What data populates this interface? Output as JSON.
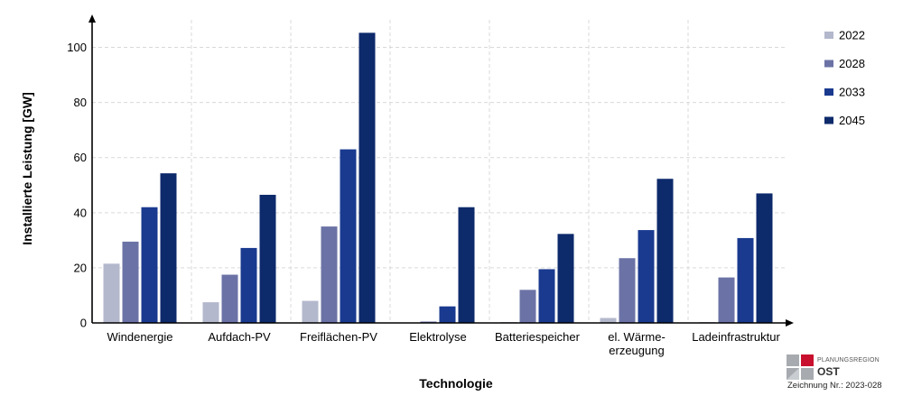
{
  "chart_data": {
    "type": "bar",
    "title": "",
    "xlabel": "Technologie",
    "ylabel": "Installierte Leistung [GW]",
    "ylim": [
      0,
      110
    ],
    "yticks": [
      0,
      20,
      40,
      60,
      80,
      100
    ],
    "grid": true,
    "legend_position": "right",
    "categories": [
      [
        "Windenergie"
      ],
      [
        "Aufdach-PV"
      ],
      [
        "Freiflächen-PV"
      ],
      [
        "Elektrolyse"
      ],
      [
        "Batteriespeicher"
      ],
      [
        "el. Wärme-",
        "erzeugung"
      ],
      [
        "Ladeinfrastruktur"
      ]
    ],
    "series": [
      {
        "name": "2022",
        "color": "#b3b8cc",
        "values": [
          21.5,
          7.5,
          8,
          0,
          0.3,
          1.8,
          0.3
        ]
      },
      {
        "name": "2028",
        "color": "#6b73a6",
        "values": [
          29.5,
          17.5,
          35,
          0.5,
          12,
          23.5,
          16.5
        ]
      },
      {
        "name": "2033",
        "color": "#1a3a8f",
        "values": [
          42,
          27.2,
          63,
          6,
          19.5,
          33.7,
          30.8
        ]
      },
      {
        "name": "2045",
        "color": "#0d2a6b",
        "values": [
          54.3,
          46.5,
          105.3,
          42,
          32.3,
          52.3,
          47
        ]
      }
    ]
  },
  "logo": {
    "region": "PLANUNGSREGION",
    "name": "OST",
    "drawing_number": "Zeichnung Nr.: 2023-028",
    "colors": {
      "red": "#c8102e",
      "grey": "#a7abb0"
    }
  }
}
